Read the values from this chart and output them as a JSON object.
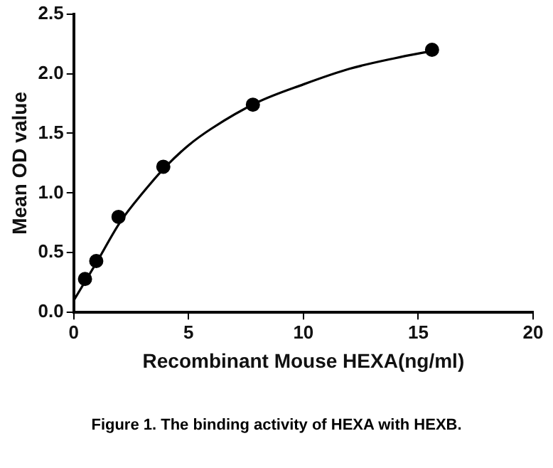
{
  "chart_data": {
    "type": "scatter",
    "xlabel": "Recombinant Mouse HEXA(ng/ml)",
    "ylabel": "Mean OD value",
    "annotations": [
      "Figure 1. The binding activity of HEXA with HEXB."
    ],
    "xlim": [
      0,
      20
    ],
    "xticks": [
      0,
      5,
      10,
      15,
      20
    ],
    "ylim": [
      0,
      2.5
    ],
    "yticks": [
      {
        "value": 0,
        "label": "0.0"
      },
      {
        "value": 0.5,
        "label": "0.5"
      },
      {
        "value": 1,
        "label": "1.0"
      },
      {
        "value": 1.5,
        "label": "1.5"
      },
      {
        "value": 2,
        "label": "2.0"
      },
      {
        "value": 2.5,
        "label": "2.5"
      }
    ],
    "grid": false,
    "legend": false,
    "marker": "circle",
    "series": [
      {
        "type": "scatter",
        "color": "#000000",
        "x": [
          0.49,
          0.98,
          1.95,
          3.9,
          7.8,
          15.6
        ],
        "values": [
          0.28,
          0.43,
          0.8,
          1.22,
          1.74,
          2.2
        ]
      },
      {
        "type": "line",
        "color": "#000000",
        "marker": "none",
        "line_style": "solid",
        "x": [
          0,
          0.5,
          1,
          2,
          3,
          4,
          5,
          6,
          8,
          10,
          12,
          14,
          15.6
        ],
        "values": [
          0.1,
          0.26,
          0.42,
          0.75,
          1.0,
          1.22,
          1.4,
          1.54,
          1.76,
          1.91,
          2.04,
          2.13,
          2.19
        ]
      }
    ]
  }
}
